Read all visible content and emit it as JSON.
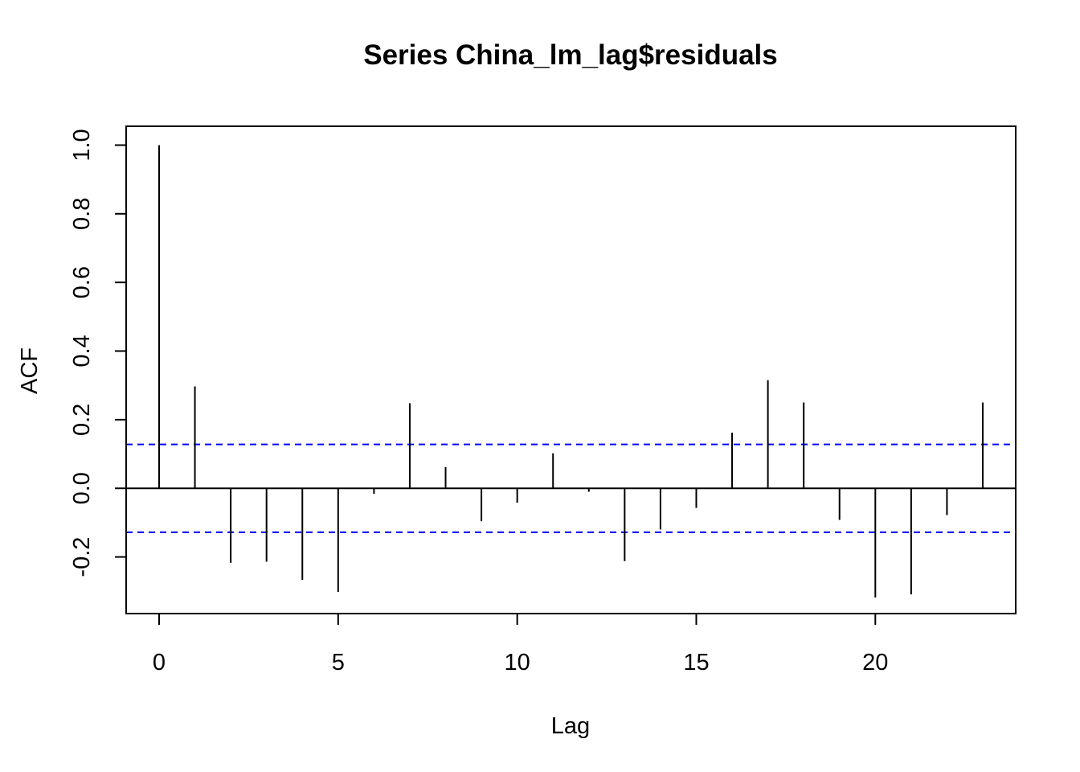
{
  "chart_data": {
    "type": "bar",
    "title": "Series  China_lm_lag$residuals",
    "xlabel": "Lag",
    "ylabel": "ACF",
    "xlim": [
      -0.92,
      23.92
    ],
    "ylim": [
      -0.365,
      1.055
    ],
    "x_ticks": [
      0,
      5,
      10,
      15,
      20
    ],
    "y_ticks": [
      -0.2,
      0.0,
      0.2,
      0.4,
      0.6,
      0.8,
      1.0
    ],
    "x_tick_labels": [
      "0",
      "5",
      "10",
      "15",
      "20"
    ],
    "y_tick_labels": [
      "-0.2",
      "0.0",
      "0.2",
      "0.4",
      "0.6",
      "0.8",
      "1.0"
    ],
    "grid": false,
    "lags": [
      0,
      1,
      2,
      3,
      4,
      5,
      6,
      7,
      8,
      9,
      10,
      11,
      12,
      13,
      14,
      15,
      16,
      17,
      18,
      19,
      20,
      21,
      22,
      23
    ],
    "acf": [
      1.0,
      0.297,
      -0.217,
      -0.214,
      -0.267,
      -0.302,
      -0.016,
      0.248,
      0.062,
      -0.096,
      -0.042,
      0.102,
      -0.01,
      -0.212,
      -0.12,
      -0.057,
      0.162,
      0.315,
      0.25,
      -0.092,
      -0.318,
      -0.309,
      -0.078,
      0.25
    ],
    "ci": 0.128,
    "ci_color": "#0000ff",
    "bar_color": "#000000"
  }
}
